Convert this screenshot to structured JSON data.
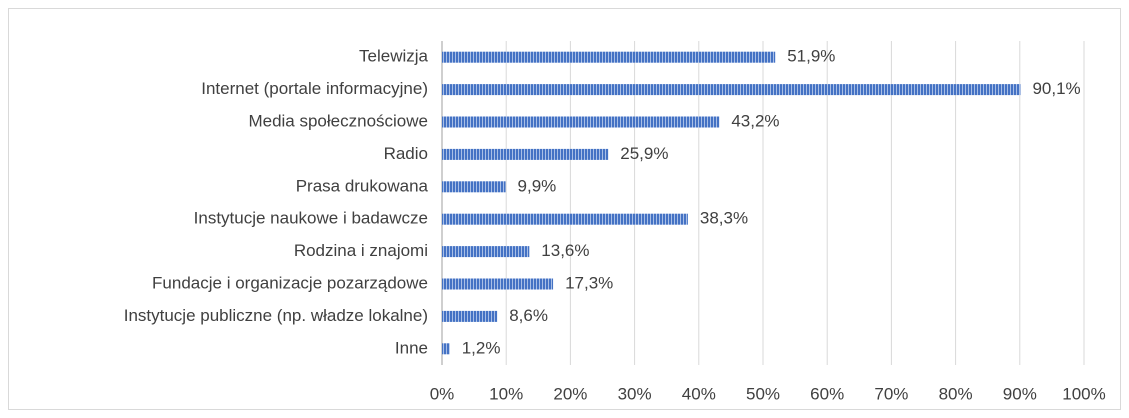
{
  "chart_data": {
    "type": "bar",
    "orientation": "horizontal",
    "categories": [
      "Telewizja",
      "Internet (portale informacyjne)",
      "Media społecznościowe",
      "Radio",
      "Prasa drukowana",
      "Instytucje naukowe i badawcze",
      "Rodzina i znajomi",
      "Fundacje i organizacje pozarządowe",
      "Instytucje publiczne (np. władze lokalne)",
      "Inne"
    ],
    "values": [
      51.9,
      90.1,
      43.2,
      25.9,
      9.9,
      38.3,
      13.6,
      17.3,
      8.6,
      1.2
    ],
    "value_labels": [
      "51,9%",
      "90,1%",
      "43,2%",
      "25,9%",
      "9,9%",
      "38,3%",
      "13,6%",
      "17,3%",
      "8,6%",
      "1,2%"
    ],
    "color": "#4472c4",
    "xlim": [
      0,
      100
    ],
    "xticks": [
      {
        "value": 0,
        "label": "0%"
      },
      {
        "value": 10,
        "label": "10%"
      },
      {
        "value": 20,
        "label": "20%"
      },
      {
        "value": 30,
        "label": "30%"
      },
      {
        "value": 40,
        "label": "40%"
      },
      {
        "value": 50,
        "label": "50%"
      },
      {
        "value": 60,
        "label": "60%"
      },
      {
        "value": 70,
        "label": "70%"
      },
      {
        "value": 80,
        "label": "80%"
      },
      {
        "value": 90,
        "label": "90%"
      },
      {
        "value": 100,
        "label": "100%"
      }
    ],
    "grid": true
  }
}
